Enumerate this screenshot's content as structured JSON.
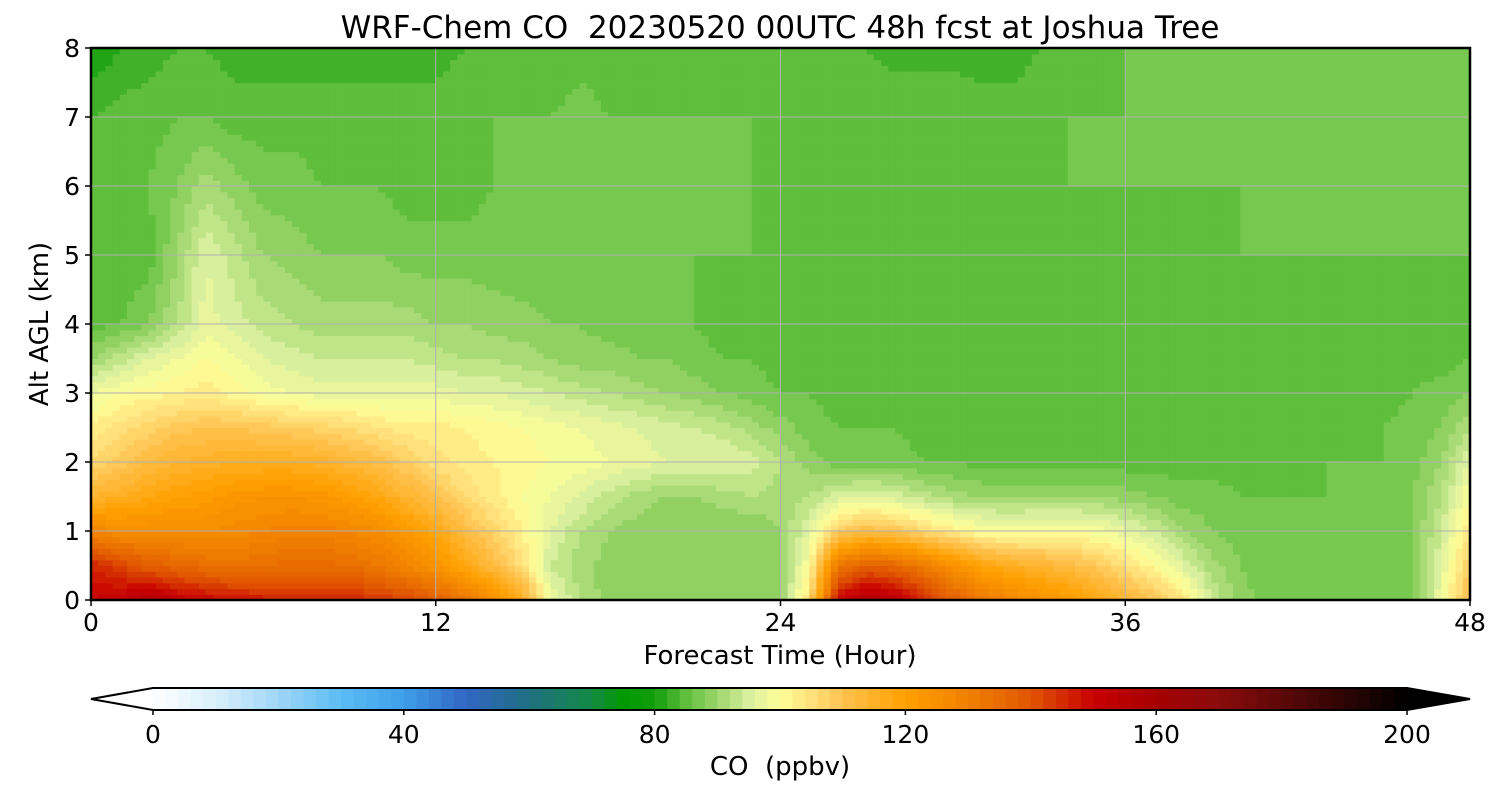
{
  "chart_data": {
    "type": "heatmap",
    "title": "WRF-Chem CO  20230520 00UTC 48h fcst at Joshua Tree",
    "xlabel": "Forecast Time (Hour)",
    "ylabel": "Alt AGL (km)",
    "xlim": [
      0,
      48
    ],
    "ylim": [
      0,
      8
    ],
    "xticks": [
      "0",
      "12",
      "24",
      "36",
      "48"
    ],
    "yticks": [
      "0",
      "1",
      "2",
      "3",
      "4",
      "5",
      "6",
      "7",
      "8"
    ],
    "grid": true,
    "x_hours": [
      0,
      1,
      2,
      3,
      4,
      5,
      6,
      7,
      8,
      9,
      10,
      11,
      12,
      13,
      14,
      15,
      16,
      17,
      18,
      19,
      20,
      21,
      22,
      23,
      24,
      25,
      26,
      27,
      28,
      29,
      30,
      31,
      32,
      33,
      34,
      35,
      36,
      37,
      38,
      39,
      40,
      41,
      42,
      43,
      44,
      45,
      46,
      47,
      48
    ],
    "z_km": [
      0,
      0.5,
      1,
      1.5,
      2,
      2.5,
      3,
      3.5,
      4,
      5,
      6,
      7,
      8
    ],
    "co_ppbv": [
      [
        150,
        152,
        156,
        152,
        150,
        148,
        147,
        146,
        147,
        146,
        144,
        142,
        138,
        133,
        126,
        117,
        98,
        92,
        89,
        89,
        89,
        89,
        89,
        89,
        89,
        105,
        150,
        157,
        154,
        146,
        138,
        132,
        128,
        125,
        122,
        118,
        114,
        110,
        104,
        94,
        89,
        87,
        87,
        87,
        87,
        87,
        87,
        98,
        112
      ],
      [
        146,
        142,
        138,
        136,
        134,
        133,
        134,
        135,
        135,
        134,
        132,
        128,
        124,
        118,
        112,
        105,
        94,
        91,
        89,
        89,
        88,
        88,
        88,
        88,
        89,
        100,
        132,
        138,
        136,
        131,
        125,
        119,
        116,
        114,
        112,
        109,
        105,
        101,
        96,
        91,
        88,
        87,
        87,
        87,
        87,
        87,
        88,
        96,
        108
      ],
      [
        128,
        126,
        126,
        126,
        126,
        127,
        128,
        129,
        129,
        128,
        126,
        122,
        118,
        112,
        107,
        102,
        96,
        92,
        90,
        89,
        88,
        88,
        88,
        88,
        90,
        96,
        108,
        112,
        110,
        106,
        103,
        100,
        99,
        100,
        100,
        99,
        97,
        94,
        90,
        88,
        87,
        87,
        87,
        87,
        87,
        87,
        88,
        94,
        104
      ],
      [
        114,
        116,
        118,
        120,
        121,
        123,
        124,
        124,
        123,
        121,
        118,
        114,
        110,
        106,
        103,
        100,
        98,
        96,
        93,
        91,
        90,
        90,
        91,
        92,
        91,
        92,
        95,
        96,
        95,
        93,
        91,
        90,
        90,
        90,
        90,
        90,
        89,
        88,
        87,
        87,
        86,
        86,
        86,
        86,
        86,
        87,
        88,
        92,
        100
      ],
      [
        106,
        109,
        112,
        114,
        115,
        116,
        116,
        116,
        115,
        113,
        111,
        108,
        105,
        103,
        102,
        101,
        100,
        99,
        98,
        97,
        96,
        96,
        96,
        95,
        92,
        89,
        87,
        87,
        87,
        86,
        86,
        85,
        85,
        85,
        85,
        85,
        85,
        85,
        85,
        85,
        85,
        85,
        85,
        86,
        86,
        86,
        87,
        90,
        96
      ],
      [
        102,
        105,
        107,
        109,
        110,
        110,
        109,
        108,
        107,
        106,
        104,
        103,
        103,
        102,
        101,
        100,
        99,
        98,
        97,
        96,
        95,
        94,
        93,
        91,
        89,
        87,
        86,
        86,
        86,
        85,
        85,
        85,
        85,
        85,
        85,
        85,
        85,
        85,
        85,
        85,
        85,
        85,
        85,
        85,
        85,
        86,
        87,
        88,
        92
      ],
      [
        98,
        100,
        101,
        102,
        103,
        101,
        99,
        98,
        97,
        97,
        97,
        97,
        97,
        96,
        96,
        95,
        94,
        93,
        92,
        91,
        90,
        89,
        88,
        87,
        86,
        86,
        85,
        85,
        85,
        85,
        85,
        85,
        85,
        85,
        85,
        85,
        85,
        85,
        85,
        85,
        85,
        85,
        85,
        85,
        85,
        85,
        86,
        87,
        88
      ],
      [
        90,
        93,
        96,
        98,
        100,
        98,
        96,
        95,
        94,
        94,
        94,
        94,
        93,
        92,
        92,
        91,
        90,
        89,
        89,
        88,
        88,
        87,
        86,
        86,
        85,
        85,
        85,
        85,
        85,
        85,
        85,
        85,
        85,
        85,
        85,
        85,
        85,
        85,
        85,
        85,
        85,
        85,
        85,
        85,
        85,
        85,
        85,
        85,
        86
      ],
      [
        85,
        86,
        88,
        92,
        97,
        95,
        93,
        92,
        91,
        91,
        91,
        91,
        90,
        90,
        89,
        89,
        88,
        88,
        87,
        87,
        86,
        86,
        85,
        85,
        85,
        85,
        85,
        85,
        85,
        85,
        85,
        85,
        85,
        84,
        84,
        84,
        84,
        84,
        84,
        84,
        84,
        84,
        84,
        84,
        84,
        84,
        84,
        84,
        85
      ],
      [
        84,
        84,
        85,
        90,
        96,
        93,
        90,
        89,
        88,
        88,
        88,
        87,
        87,
        87,
        87,
        86,
        86,
        86,
        86,
        86,
        86,
        86,
        86,
        86,
        85,
        85,
        85,
        85,
        85,
        85,
        85,
        85,
        85,
        85,
        85,
        85,
        85,
        85,
        85,
        85,
        86,
        86,
        86,
        86,
        86,
        86,
        86,
        86,
        86
      ],
      [
        86,
        86,
        86,
        88,
        91,
        89,
        87,
        87,
        86,
        86,
        86,
        85,
        85,
        85,
        86,
        86,
        86,
        86,
        86,
        86,
        86,
        86,
        86,
        86,
        85,
        85,
        85,
        85,
        85,
        85,
        85,
        85,
        85,
        85,
        86,
        86,
        86,
        86,
        86,
        86,
        86,
        87,
        87,
        87,
        87,
        87,
        87,
        87,
        87
      ],
      [
        84,
        85,
        85,
        86,
        86,
        85,
        85,
        85,
        85,
        85,
        85,
        85,
        85,
        86,
        86,
        86,
        86,
        87,
        86,
        86,
        86,
        86,
        86,
        86,
        86,
        86,
        86,
        86,
        86,
        86,
        86,
        85,
        85,
        85,
        86,
        86,
        86,
        86,
        87,
        87,
        87,
        87,
        88,
        88,
        88,
        88,
        88,
        88,
        87
      ],
      [
        80,
        82,
        83,
        84,
        84,
        83,
        83,
        83,
        83,
        83,
        83,
        83,
        83,
        84,
        84,
        84,
        84,
        85,
        85,
        85,
        85,
        85,
        85,
        85,
        85,
        85,
        85,
        84,
        83,
        83,
        83,
        83,
        83,
        84,
        85,
        85,
        86,
        86,
        86,
        86,
        87,
        87,
        87,
        87,
        87,
        87,
        87,
        87,
        87
      ]
    ],
    "colorbar": {
      "label": "CO  (ppbv)",
      "min": 0,
      "max": 200,
      "extend": "both",
      "ticks": [
        "0",
        "40",
        "80",
        "120",
        "160",
        "200"
      ],
      "stops": [
        {
          "v": 0,
          "c": "#ffffff"
        },
        {
          "v": 10,
          "c": "#d9effa"
        },
        {
          "v": 20,
          "c": "#9fd6f7"
        },
        {
          "v": 30,
          "c": "#5bbcf5"
        },
        {
          "v": 40,
          "c": "#3f9fe8"
        },
        {
          "v": 50,
          "c": "#3166c4"
        },
        {
          "v": 60,
          "c": "#1f6f82"
        },
        {
          "v": 70,
          "c": "#138a45"
        },
        {
          "v": 75,
          "c": "#009a00"
        },
        {
          "v": 80,
          "c": "#119e0b"
        },
        {
          "v": 85,
          "c": "#5fbe3c"
        },
        {
          "v": 90,
          "c": "#9cd66c"
        },
        {
          "v": 95,
          "c": "#d8ef9d"
        },
        {
          "v": 100,
          "c": "#ffff9a"
        },
        {
          "v": 105,
          "c": "#ffe07a"
        },
        {
          "v": 110,
          "c": "#ffc24f"
        },
        {
          "v": 120,
          "c": "#ffa000"
        },
        {
          "v": 130,
          "c": "#f08000"
        },
        {
          "v": 140,
          "c": "#e05500"
        },
        {
          "v": 150,
          "c": "#c80000"
        },
        {
          "v": 160,
          "c": "#a60000"
        },
        {
          "v": 170,
          "c": "#8a0c0c"
        },
        {
          "v": 180,
          "c": "#5e0808"
        },
        {
          "v": 190,
          "c": "#2e0404"
        },
        {
          "v": 200,
          "c": "#000000"
        }
      ]
    }
  }
}
